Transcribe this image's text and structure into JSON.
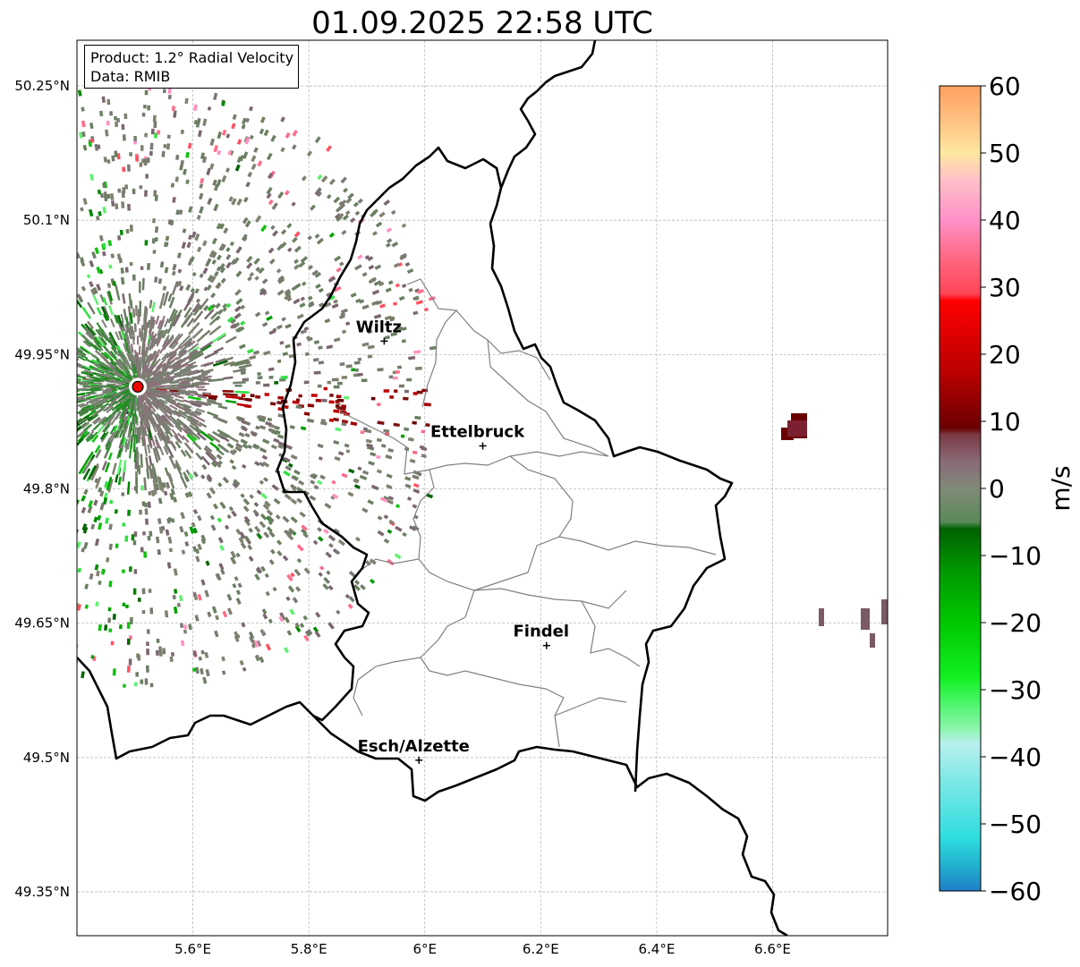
{
  "title": "01.09.2025 22:58 UTC",
  "info": {
    "product": "Product: 1.2° Radial Velocity",
    "data": "Data: RMIB"
  },
  "map": {
    "lon_range": [
      5.4,
      6.8
    ],
    "lat_range": [
      49.3,
      50.3
    ],
    "grid": true,
    "x_ticks": [
      {
        "value": 5.6,
        "label": "5.6°E"
      },
      {
        "value": 5.8,
        "label": "5.8°E"
      },
      {
        "value": 6.0,
        "label": "6°E"
      },
      {
        "value": 6.2,
        "label": "6.2°E"
      },
      {
        "value": 6.4,
        "label": "6.4°E"
      },
      {
        "value": 6.6,
        "label": "6.6°E"
      }
    ],
    "y_ticks": [
      {
        "value": 50.25,
        "label": "50.25°N"
      },
      {
        "value": 50.1,
        "label": "50.1°N"
      },
      {
        "value": 49.95,
        "label": "49.95°N"
      },
      {
        "value": 49.8,
        "label": "49.8°N"
      },
      {
        "value": 49.65,
        "label": "49.65°N"
      },
      {
        "value": 49.5,
        "label": "49.5°N"
      },
      {
        "value": 49.35,
        "label": "49.35°N"
      }
    ],
    "cities": [
      {
        "name": "Wiltz",
        "lon": 5.93,
        "lat": 49.965
      },
      {
        "name": "Ettelbruck",
        "lon": 6.1,
        "lat": 49.848
      },
      {
        "name": "Findel",
        "lon": 6.21,
        "lat": 49.625
      },
      {
        "name": "Esch/Alzette",
        "lon": 5.99,
        "lat": 49.497
      }
    ],
    "radar_site": {
      "lon": 5.505,
      "lat": 49.914
    }
  },
  "colorbar": {
    "min": -60,
    "max": 60,
    "unit": "m/s",
    "ticks": [
      {
        "value": 60,
        "label": "60"
      },
      {
        "value": 50,
        "label": "50"
      },
      {
        "value": 40,
        "label": "40"
      },
      {
        "value": 30,
        "label": "30"
      },
      {
        "value": 20,
        "label": "20"
      },
      {
        "value": 10,
        "label": "10"
      },
      {
        "value": 0,
        "label": "0"
      },
      {
        "value": -10,
        "label": "−10"
      },
      {
        "value": -20,
        "label": "−20"
      },
      {
        "value": -30,
        "label": "−30"
      },
      {
        "value": -40,
        "label": "−40"
      },
      {
        "value": -50,
        "label": "−50"
      },
      {
        "value": -60,
        "label": "−60"
      }
    ],
    "stops": [
      {
        "v": -60,
        "c": "#1f7ec8"
      },
      {
        "v": -56,
        "c": "#22b4d0"
      },
      {
        "v": -52,
        "c": "#2fdde0"
      },
      {
        "v": -45,
        "c": "#70e6e4"
      },
      {
        "v": -38,
        "c": "#b8f0ee"
      },
      {
        "v": -36,
        "c": "#8ff5b0"
      },
      {
        "v": -32,
        "c": "#4cf56a"
      },
      {
        "v": -28,
        "c": "#10f020"
      },
      {
        "v": -20,
        "c": "#00c800"
      },
      {
        "v": -12,
        "c": "#009600"
      },
      {
        "v": -6,
        "c": "#006000"
      },
      {
        "v": -5,
        "c": "#5a8a5a"
      },
      {
        "v": 0,
        "c": "#808a78"
      },
      {
        "v": 4,
        "c": "#8a6a78"
      },
      {
        "v": 8,
        "c": "#7a3a44"
      },
      {
        "v": 9,
        "c": "#6a0000"
      },
      {
        "v": 17,
        "c": "#b80000"
      },
      {
        "v": 28,
        "c": "#ff0000"
      },
      {
        "v": 29,
        "c": "#ff4455"
      },
      {
        "v": 34,
        "c": "#ff6680"
      },
      {
        "v": 40,
        "c": "#ff90c8"
      },
      {
        "v": 46,
        "c": "#ffc0c8"
      },
      {
        "v": 50,
        "c": "#ffe8a0"
      },
      {
        "v": 55,
        "c": "#ffc080"
      },
      {
        "v": 60,
        "c": "#ffa060"
      }
    ]
  },
  "colors": {
    "border": "#000000",
    "cantons": "#808080",
    "grid": "#bbbbbb",
    "radar_marker": "#ee0000"
  }
}
